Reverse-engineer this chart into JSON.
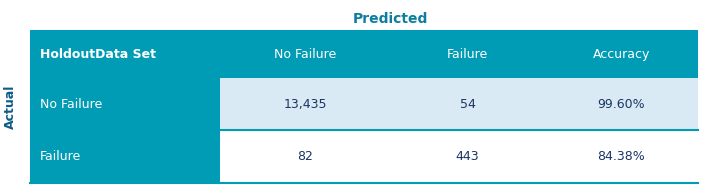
{
  "title": "Predicted",
  "title_color": "#0d7ea0",
  "title_fontsize": 10,
  "col_header_label": "HoldoutData Set",
  "col_headers": [
    "No Failure",
    "Failure",
    "Accuracy"
  ],
  "row_labels": [
    "No Failure",
    "Failure"
  ],
  "data": [
    [
      "13,435",
      "54",
      "99.60%"
    ],
    [
      "82",
      "443",
      "84.38%"
    ]
  ],
  "teal_color": "#009bb4",
  "row0_bg_color": "#daeaf4",
  "row1_bg_color": "#ffffff",
  "header_text_color": "#ffffff",
  "data_text_color": "#1a3566",
  "row_label_text_color": "#ffffff",
  "actual_label": "Actual",
  "actual_label_color": "#0d5c87",
  "divider_color": "#009bb4",
  "figsize": [
    7.06,
    1.87
  ],
  "dpi": 100
}
